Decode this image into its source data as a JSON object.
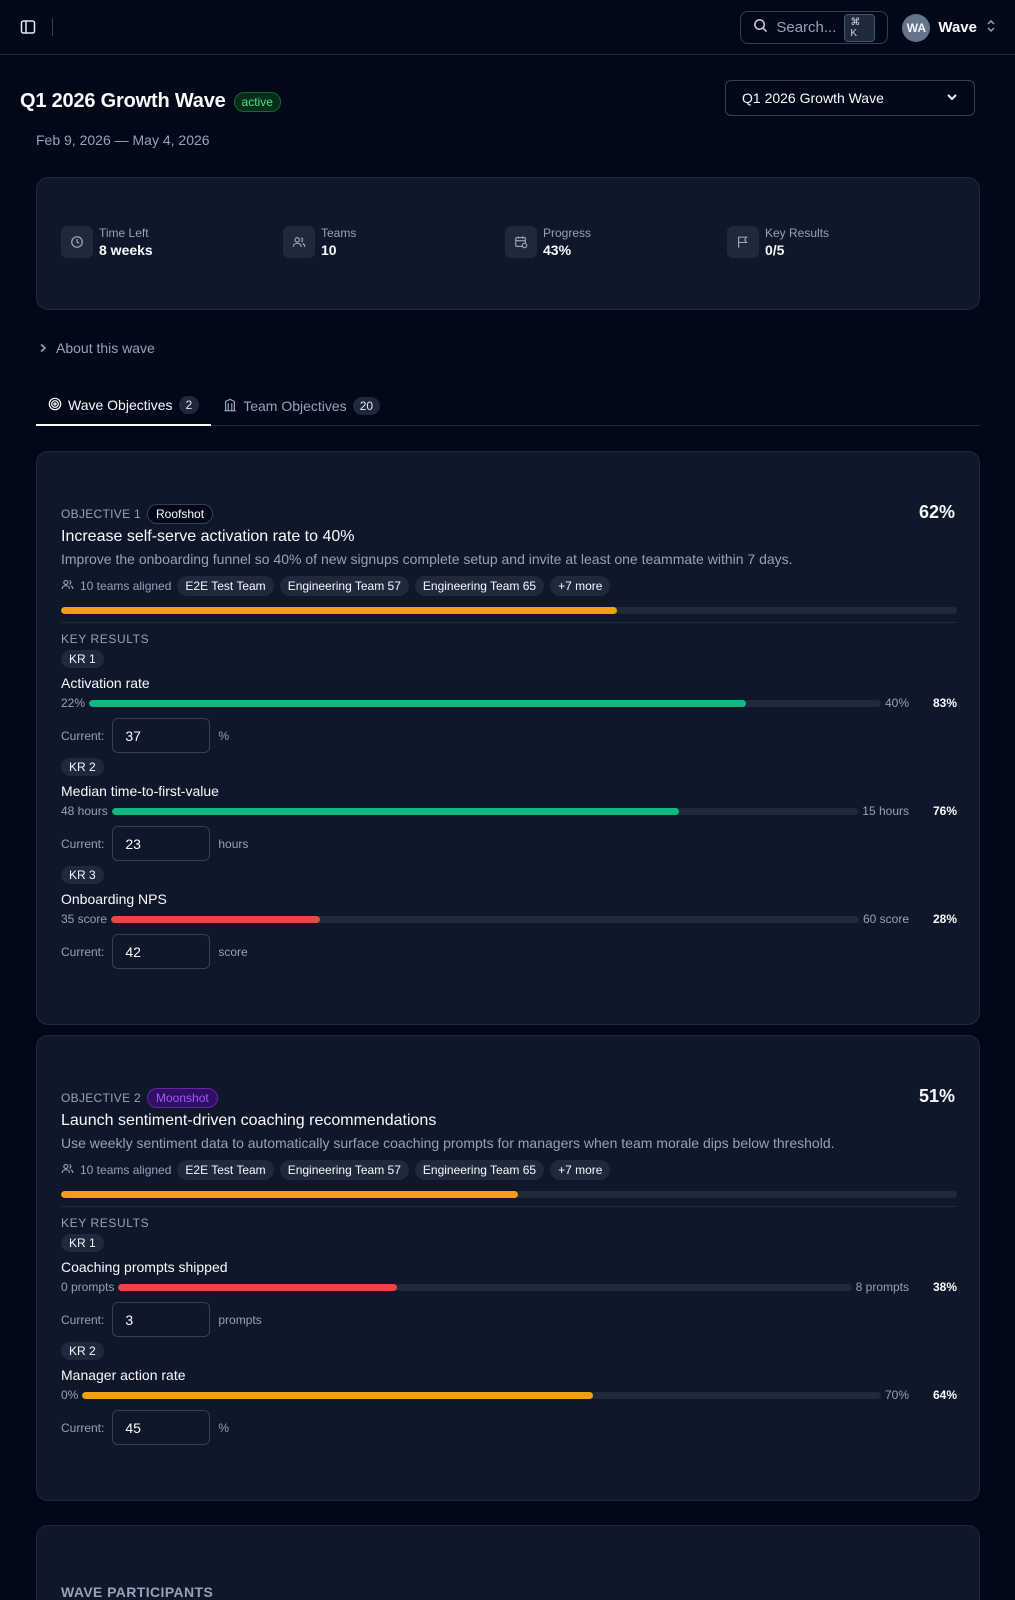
{
  "topbar": {
    "search_placeholder": "Search...",
    "search_shortcut": "⌘ K",
    "user_initials": "WA",
    "user_name": "Wave"
  },
  "header": {
    "title": "Q1 2026 Growth Wave",
    "status": "active",
    "date_range": "Feb 9, 2026 — May 4, 2026",
    "selected_wave": "Q1 2026 Growth Wave"
  },
  "stats": {
    "time_left": {
      "label": "Time Left",
      "value": "8 weeks"
    },
    "teams": {
      "label": "Teams",
      "value": "10"
    },
    "progress": {
      "label": "Progress",
      "value": "43%"
    },
    "key_results": {
      "label": "Key Results",
      "value": "0/5"
    }
  },
  "about": {
    "label": "About this wave"
  },
  "tabs": [
    {
      "label": "Wave Objectives",
      "count": "2"
    },
    {
      "label": "Team Objectives",
      "count": "20"
    }
  ],
  "key_results_heading": "KEY RESULTS",
  "current_label": "Current:",
  "objectives": [
    {
      "number": "OBJECTIVE 1",
      "tier": "Roofshot",
      "percent": "62%",
      "progress": 0.62,
      "title": "Increase self-serve activation rate to 40%",
      "description": "Improve the onboarding funnel so 40% of new signups complete setup and invite at least one teammate within 7 days.",
      "aligned": "10 teams aligned",
      "teams": [
        "E2E Test Team",
        "Engineering Team 57",
        "Engineering Team 65",
        "+7 more"
      ],
      "key_results": [
        {
          "tag": "KR 1",
          "name": "Activation rate",
          "start": "22%",
          "target": "40%",
          "percent": "83%",
          "progress": 0.83,
          "current": "37",
          "unit": "%",
          "color": "#10b981"
        },
        {
          "tag": "KR 2",
          "name": "Median time-to-first-value",
          "start": "48 hours",
          "target": "15 hours",
          "percent": "76%",
          "progress": 0.76,
          "current": "23",
          "unit": "hours",
          "color": "#10b981"
        },
        {
          "tag": "KR 3",
          "name": "Onboarding NPS",
          "start": "35 score",
          "target": "60 score",
          "percent": "28%",
          "progress": 0.28,
          "current": "42",
          "unit": "score",
          "color": "#ef4444"
        }
      ]
    },
    {
      "number": "OBJECTIVE 2",
      "tier": "Moonshot",
      "percent": "51%",
      "progress": 0.51,
      "title": "Launch sentiment-driven coaching recommendations",
      "description": "Use weekly sentiment data to automatically surface coaching prompts for managers when team morale dips below threshold.",
      "aligned": "10 teams aligned",
      "teams": [
        "E2E Test Team",
        "Engineering Team 57",
        "Engineering Team 65",
        "+7 more"
      ],
      "key_results": [
        {
          "tag": "KR 1",
          "name": "Coaching prompts shipped",
          "start": "0 prompts",
          "target": "8 prompts",
          "percent": "38%",
          "progress": 0.38,
          "current": "3",
          "unit": "prompts",
          "color": "#ef4444"
        },
        {
          "tag": "KR 2",
          "name": "Manager action rate",
          "start": "0%",
          "target": "70%",
          "percent": "64%",
          "progress": 0.64,
          "current": "45",
          "unit": "%",
          "color": "#f59e0b"
        }
      ]
    }
  ],
  "participants": {
    "title": "WAVE PARTICIPANTS"
  }
}
